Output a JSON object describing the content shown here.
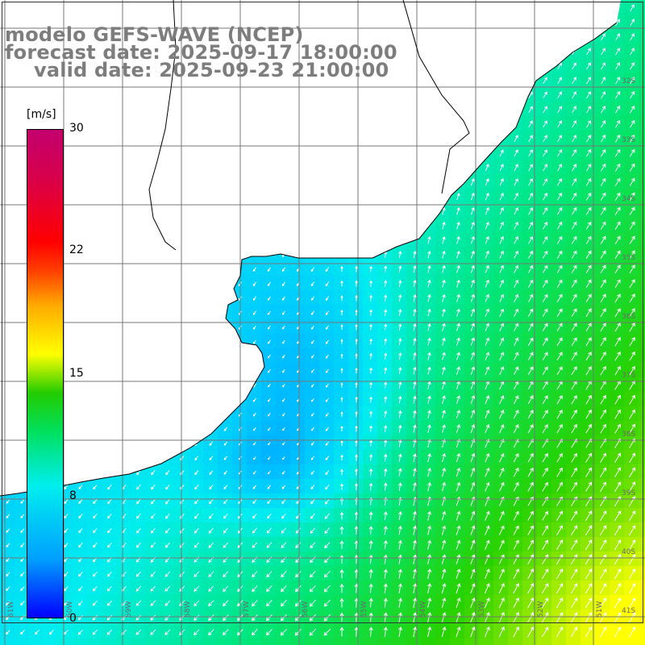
{
  "title": {
    "line1": "modelo GEFS-WAVE (NCEP)",
    "line2": "forecast date: 2025-09-17 18:00:00",
    "line3": "valid date: 2025-09-23 21:00:00"
  },
  "colorbar": {
    "unit": "[m/s]",
    "ticks": [
      "30",
      "22",
      "15",
      "8",
      "0"
    ],
    "range": [
      0,
      30
    ],
    "colors": [
      "#0000ff",
      "#00a0ff",
      "#00eeee",
      "#00e060",
      "#22cc00",
      "#ffff00",
      "#ffaa00",
      "#ff4000",
      "#ff0000",
      "#c2006e"
    ]
  },
  "map": {
    "lon_range": [
      -61,
      -50
    ],
    "lat_range": [
      -41.8,
      -31.3
    ],
    "lat_labels": [
      "32S",
      "33S",
      "34S",
      "35S",
      "36S",
      "37S",
      "38S",
      "39S",
      "40S",
      "41S"
    ],
    "lon_labels": [
      "61W",
      "60W",
      "59W",
      "58W",
      "57W",
      "56W",
      "55W",
      "54W",
      "53W",
      "52W",
      "51W"
    ],
    "colors": {
      "land": "#ffffff",
      "grid": "#777777",
      "coast": "#000000",
      "arrow": "#ffffff"
    }
  }
}
